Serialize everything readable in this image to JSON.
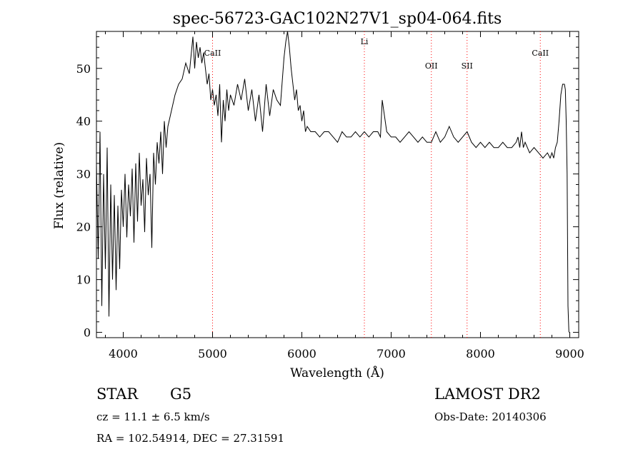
{
  "chart_data": {
    "type": "line",
    "title": "spec-56723-GAC102N27V1_sp04-064.fits",
    "xlabel": "Wavelength (Å)",
    "ylabel": "Flux (relative)",
    "xlim": [
      3700,
      9100
    ],
    "ylim": [
      -1,
      57
    ],
    "xticks": [
      4000,
      5000,
      6000,
      7000,
      8000,
      9000
    ],
    "yticks": [
      0,
      10,
      20,
      30,
      40,
      50
    ],
    "xtick_labels": [
      "4000",
      "5000",
      "6000",
      "7000",
      "8000",
      "9000"
    ],
    "ytick_labels": [
      "0",
      "10",
      "20",
      "30",
      "40",
      "50"
    ],
    "grid": false,
    "line_color": "#000000",
    "marker_color": "#ff0000",
    "lines": [
      {
        "name": "CaII",
        "x": 5000
      },
      {
        "name": "Li",
        "x": 6700
      },
      {
        "name": "OII",
        "x": 7450
      },
      {
        "name": "SII",
        "x": 7850
      },
      {
        "name": "CaII",
        "x": 8670
      }
    ],
    "series": [
      {
        "x": [
          3700,
          3720,
          3740,
          3760,
          3780,
          3800,
          3820,
          3840,
          3860,
          3880,
          3900,
          3920,
          3940,
          3960,
          3980,
          4000,
          4020,
          4040,
          4060,
          4080,
          4100,
          4120,
          4140,
          4160,
          4180,
          4200,
          4220,
          4240,
          4260,
          4280,
          4300,
          4320,
          4340,
          4360,
          4380,
          4400,
          4420,
          4440,
          4460,
          4480,
          4500,
          4540,
          4580,
          4620,
          4660,
          4700,
          4740,
          4780,
          4800,
          4820,
          4840,
          4860,
          4880,
          4900,
          4920,
          4940,
          4960,
          4980,
          5000,
          5020,
          5040,
          5060,
          5080,
          5100,
          5120,
          5140,
          5160,
          5180,
          5200,
          5240,
          5280,
          5320,
          5360,
          5400,
          5440,
          5480,
          5520,
          5560,
          5600,
          5640,
          5680,
          5720,
          5760,
          5800,
          5820,
          5840,
          5860,
          5880,
          5900,
          5920,
          5940,
          5960,
          5980,
          6000,
          6020,
          6040,
          6060,
          6100,
          6150,
          6200,
          6250,
          6300,
          6350,
          6400,
          6450,
          6500,
          6550,
          6600,
          6650,
          6700,
          6750,
          6800,
          6850,
          6880,
          6900,
          6950,
          7000,
          7050,
          7100,
          7150,
          7200,
          7250,
          7300,
          7350,
          7400,
          7450,
          7500,
          7550,
          7600,
          7650,
          7700,
          7750,
          7800,
          7850,
          7900,
          7950,
          8000,
          8050,
          8100,
          8150,
          8200,
          8250,
          8300,
          8350,
          8400,
          8420,
          8440,
          8460,
          8480,
          8500,
          8550,
          8600,
          8650,
          8700,
          8750,
          8780,
          8800,
          8820,
          8840,
          8860,
          8880,
          8900,
          8920,
          8940,
          8950,
          8960,
          8970,
          8980,
          8990
        ],
        "y": [
          32,
          14,
          38,
          5,
          30,
          12,
          35,
          3,
          28,
          10,
          26,
          8,
          24,
          12,
          27,
          20,
          30,
          18,
          28,
          22,
          31,
          17,
          32,
          21,
          34,
          24,
          29,
          19,
          33,
          26,
          30,
          16,
          34,
          28,
          36,
          32,
          38,
          30,
          40,
          35,
          39,
          42,
          45,
          47,
          48,
          51,
          49,
          56,
          50,
          55,
          52,
          54,
          51,
          53,
          50,
          47,
          49,
          44,
          46,
          43,
          45,
          41,
          47,
          36,
          44,
          40,
          46,
          42,
          45,
          43,
          47,
          44,
          48,
          42,
          46,
          40,
          45,
          38,
          47,
          41,
          46,
          44,
          43,
          52,
          55,
          57,
          54,
          50,
          47,
          44,
          46,
          42,
          43,
          40,
          42,
          38,
          39,
          38,
          38,
          37,
          38,
          38,
          37,
          36,
          38,
          37,
          37,
          38,
          37,
          38,
          37,
          38,
          38,
          37,
          44,
          38,
          37,
          37,
          36,
          37,
          38,
          37,
          36,
          37,
          36,
          36,
          38,
          36,
          37,
          39,
          37,
          36,
          37,
          38,
          36,
          35,
          36,
          35,
          36,
          35,
          35,
          36,
          35,
          35,
          36,
          37,
          35,
          38,
          35,
          36,
          34,
          35,
          34,
          33,
          34,
          33,
          34,
          33,
          35,
          36,
          40,
          45,
          47,
          47,
          46,
          40,
          30,
          5,
          0
        ]
      }
    ]
  },
  "footer": {
    "object_label": "STAR",
    "subclass": "G5",
    "survey": "LAMOST DR2",
    "cz_text": "cz = 11.1 ± 6.5 km/s",
    "obs_date": "Obs-Date: 20140306",
    "coords": "RA = 102.54914, DEC =  27.31591"
  }
}
